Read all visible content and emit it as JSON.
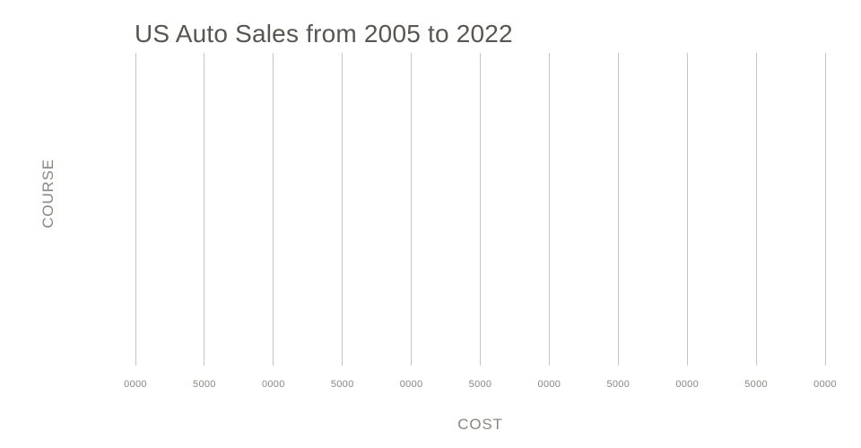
{
  "chart_data": {
    "type": "line",
    "title": "US Auto Sales from 2005 to 2022",
    "xlabel": "COST",
    "ylabel": "COURSE",
    "x_tick_labels": [
      "0000",
      "5000",
      "0000",
      "5000",
      "0000",
      "5000",
      "0000",
      "5000",
      "0000",
      "5000",
      "0000"
    ],
    "y_tick_labels": [],
    "series": [],
    "grid": {
      "vertical": true,
      "horizontal": false
    },
    "legend_position": "none",
    "plot_background": "empty - no data points, bars or lines are rendered in the plot area",
    "colors": {
      "title": "#595551",
      "axis_labels": "#8a8682",
      "tick_labels": "#8a8682",
      "gridline": "#c8c6c1",
      "background": "#ffffff"
    }
  }
}
